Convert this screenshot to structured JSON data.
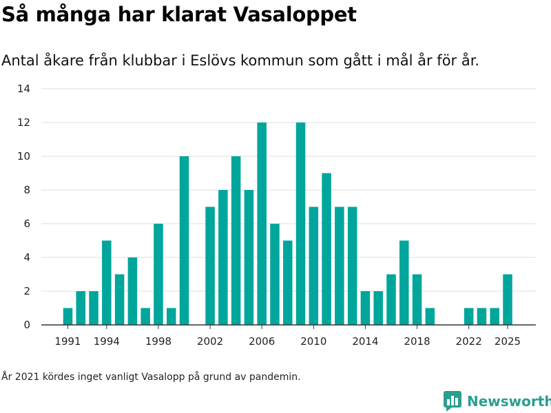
{
  "title": "Så många har klarat Vasaloppet",
  "subtitle": "Antal åkare från klubbar i Eslövs kommun som gått i mål år för år.",
  "footnote": "År 2021 kördes inget vanligt Vasalopp på grund av pandemin.",
  "brand": {
    "name": "Newsworthy",
    "color": "#2b9e8f",
    "icon": "bar-chart-icon"
  },
  "colors": {
    "bar": "#00a69c",
    "grid": "#dddddd",
    "axis": "#333333"
  },
  "chart_data": {
    "type": "bar",
    "title": "Så många har klarat Vasaloppet",
    "xlabel": "",
    "ylabel": "",
    "ylim": [
      0,
      14
    ],
    "yticks": [
      0,
      2,
      4,
      6,
      8,
      10,
      12,
      14
    ],
    "xticks": [
      1991,
      1994,
      1998,
      2002,
      2006,
      2010,
      2014,
      2018,
      2022,
      2025
    ],
    "x": [
      1991,
      1992,
      1993,
      1994,
      1995,
      1996,
      1997,
      1998,
      1999,
      2000,
      2001,
      2002,
      2003,
      2004,
      2005,
      2006,
      2007,
      2008,
      2009,
      2010,
      2011,
      2012,
      2013,
      2014,
      2015,
      2016,
      2017,
      2018,
      2019,
      2020,
      2021,
      2022,
      2023,
      2024,
      2025
    ],
    "values": [
      1,
      2,
      2,
      5,
      3,
      4,
      1,
      6,
      1,
      10,
      0,
      7,
      8,
      10,
      8,
      12,
      6,
      5,
      12,
      7,
      9,
      7,
      7,
      2,
      2,
      3,
      5,
      3,
      1,
      0,
      0,
      1,
      1,
      1,
      3
    ],
    "grid": true,
    "legend": "none"
  }
}
